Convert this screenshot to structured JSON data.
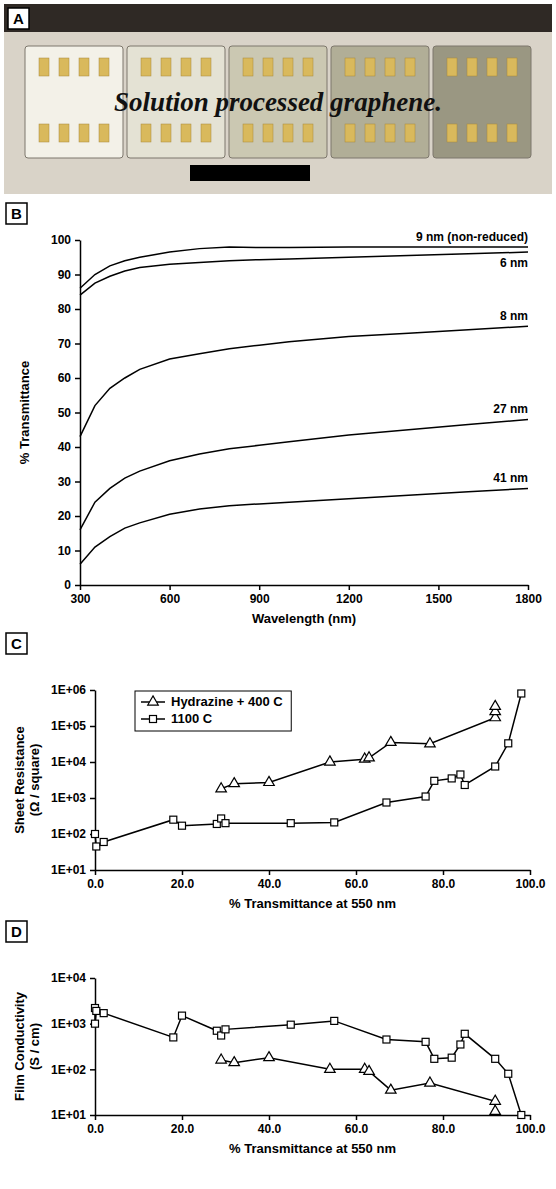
{
  "photo": {
    "panel": "A",
    "text": "Solution processed graphene."
  },
  "chart_data": [
    {
      "type": "line",
      "panel": "B",
      "x_label": "Wavelength (nm)",
      "y_label": "% Transmittance",
      "x": [
        300,
        350,
        400,
        450,
        500,
        600,
        700,
        800,
        900,
        1000,
        1200,
        1400,
        1600,
        1800
      ],
      "xlim": [
        300,
        1800
      ],
      "xticks": [
        300,
        600,
        900,
        1200,
        1500,
        1800
      ],
      "ylim": [
        0,
        100
      ],
      "yticks": [
        0,
        10,
        20,
        30,
        40,
        50,
        60,
        70,
        80,
        90,
        100
      ],
      "grid": false,
      "line_style": "solid",
      "series": [
        {
          "name": "9 nm (non-reduced)",
          "color": "#000000",
          "values": [
            86,
            90,
            92.5,
            94,
            95,
            96.5,
            97.5,
            98,
            97.8,
            97.8,
            98,
            98,
            98,
            98
          ]
        },
        {
          "name": "6 nm",
          "color": "#000000",
          "values": [
            84,
            87.5,
            89.5,
            91,
            92,
            93,
            93.5,
            94,
            94.3,
            94.5,
            95,
            95.5,
            96,
            96.5
          ]
        },
        {
          "name": "8 nm",
          "color": "#000000",
          "values": [
            43,
            52,
            57,
            60,
            62.5,
            65.5,
            67,
            68.5,
            69.5,
            70.5,
            72,
            73,
            74,
            75
          ]
        },
        {
          "name": "27 nm",
          "color": "#000000",
          "values": [
            16,
            24,
            28,
            31,
            33,
            36,
            38,
            39.5,
            40.5,
            41.5,
            43.5,
            45,
            46.5,
            48
          ]
        },
        {
          "name": "41 nm",
          "color": "#000000",
          "values": [
            6,
            11,
            14,
            16.5,
            18,
            20.5,
            22,
            23,
            23.5,
            24,
            25,
            26,
            27,
            28
          ]
        }
      ]
    },
    {
      "type": "line",
      "panel": "C",
      "x_label": "% Transmittance at 550 nm",
      "y_label": "Sheet Resistance (Ω / square)",
      "log": "y",
      "grid": false,
      "legend": "upper left",
      "line_style": "solid",
      "xlim": [
        0,
        100
      ],
      "xticks": [
        {
          "value": 0,
          "label": "0.0"
        },
        {
          "value": 20,
          "label": "20.0"
        },
        {
          "value": 40,
          "label": "40.0"
        },
        {
          "value": 60,
          "label": "60.0"
        },
        {
          "value": 80,
          "label": "80.0"
        },
        {
          "value": 100,
          "label": "100.0"
        }
      ],
      "ylim": [
        10,
        1000000
      ],
      "yticks": [
        {
          "value": 10,
          "label": "1E+01"
        },
        {
          "value": 100,
          "label": "1E+02"
        },
        {
          "value": 1000,
          "label": "1E+03"
        },
        {
          "value": 10000,
          "label": "1E+04"
        },
        {
          "value": 100000,
          "label": "1E+05"
        },
        {
          "value": 1000000,
          "label": "1E+06"
        }
      ],
      "series": [
        {
          "name": "Hydrazine + 400 C",
          "color": "#000000",
          "marker": "triangle",
          "x": [
            29,
            32,
            40,
            54,
            62,
            63,
            68,
            77,
            92,
            92,
            92
          ],
          "values": [
            1800,
            2500,
            2700,
            10000,
            12000,
            13000,
            35000,
            32000,
            170000,
            250000,
            350000
          ]
        },
        {
          "name": "1100 C",
          "color": "#000000",
          "marker": "square",
          "x": [
            0,
            0.3,
            2,
            18,
            20,
            28,
            29,
            30,
            45,
            55,
            67,
            76,
            78,
            82,
            84,
            85,
            92,
            95,
            98
          ],
          "values": [
            100,
            45,
            60,
            250,
            170,
            190,
            270,
            200,
            200,
            210,
            750,
            1100,
            3000,
            3500,
            4500,
            2300,
            7500,
            33000,
            800000
          ]
        }
      ]
    },
    {
      "type": "line",
      "panel": "D",
      "x_label": "% Transmittance at 550 nm",
      "y_label": "Film Conductivity (S / cm)",
      "log": "y",
      "grid": false,
      "line_style": "solid",
      "xlim": [
        0,
        100
      ],
      "xticks": [
        {
          "value": 0,
          "label": "0.0"
        },
        {
          "value": 20,
          "label": "20.0"
        },
        {
          "value": 40,
          "label": "40.0"
        },
        {
          "value": 60,
          "label": "60.0"
        },
        {
          "value": 80,
          "label": "80.0"
        },
        {
          "value": 100,
          "label": "100.0"
        }
      ],
      "ylim": [
        10,
        10000
      ],
      "yticks": [
        {
          "value": 10,
          "label": "1E+01"
        },
        {
          "value": 100,
          "label": "1E+02"
        },
        {
          "value": 1000,
          "label": "1E+03"
        },
        {
          "value": 10000,
          "label": "1E+04"
        }
      ],
      "series": [
        {
          "color": "#000000",
          "marker": "triangle",
          "x": [
            29,
            32,
            40,
            54,
            62,
            63,
            68,
            77,
            92,
            92
          ],
          "values": [
            160,
            140,
            180,
            100,
            100,
            90,
            35,
            50,
            20,
            12
          ]
        },
        {
          "color": "#000000",
          "marker": "square",
          "x": [
            0,
            0,
            0.3,
            2,
            18,
            20,
            28,
            29,
            30,
            45,
            55,
            67,
            76,
            78,
            82,
            84,
            85,
            92,
            95,
            98
          ],
          "values": [
            2200,
            1000,
            1900,
            1700,
            500,
            1500,
            700,
            550,
            750,
            950,
            1150,
            450,
            400,
            170,
            180,
            350,
            600,
            170,
            80,
            10
          ]
        }
      ]
    }
  ]
}
